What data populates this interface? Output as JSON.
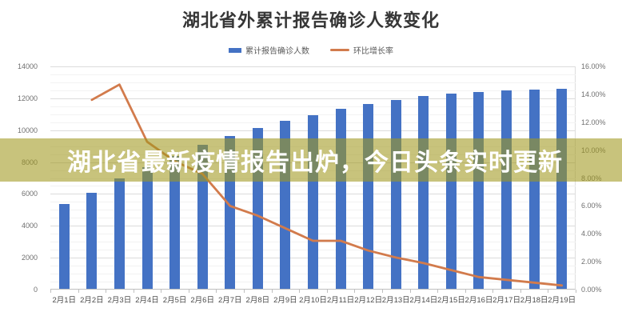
{
  "chart_data": {
    "type": "bar",
    "subtype": "combo-bar-line-dual-axis",
    "title": "湖北省外累计报告确诊人数变化",
    "categories": [
      "2月1日",
      "2月2日",
      "2月3日",
      "2月4日",
      "2月5日",
      "2月6日",
      "2月7日",
      "2月8日",
      "2月9日",
      "2月10日",
      "2月11日",
      "2月12日",
      "2月13日",
      "2月14日",
      "2月15日",
      "2月16日",
      "2月17日",
      "2月18日",
      "2月19日"
    ],
    "series": [
      {
        "name": "累计报告确诊人数",
        "type": "bar",
        "axis": "left",
        "color": "#4472C4",
        "values": [
          5306,
          6028,
          6916,
          7646,
          8353,
          9049,
          9593,
          10098,
          10540,
          10910,
          11287,
          11598,
          11865,
          12086,
          12251,
          12366,
          12447,
          12503,
          12545
        ]
      },
      {
        "name": "环比增长率",
        "type": "line",
        "axis": "right",
        "color": "#D27B4C",
        "values": [
          null,
          13.6,
          14.7,
          10.6,
          9.2,
          8.3,
          6.0,
          5.3,
          4.4,
          3.5,
          3.5,
          2.8,
          2.3,
          1.9,
          1.4,
          0.9,
          0.7,
          0.5,
          0.3
        ]
      }
    ],
    "legend": {
      "position": "top",
      "items": [
        "累计报告确诊人数",
        "环比增长率"
      ]
    },
    "left_axis": {
      "min": 0,
      "max": 14000,
      "major_step": 2000,
      "minor_step": 500,
      "labels": [
        "0",
        "2000",
        "4000",
        "6000",
        "8000",
        "10000",
        "12000",
        "14000"
      ]
    },
    "right_axis": {
      "min": 0,
      "max": 16,
      "major_step": 2,
      "labels": [
        "0.00%",
        "2.00%",
        "4.00%",
        "6.00%",
        "8.00%",
        "10.00%",
        "12.00%",
        "14.00%",
        "16.00%"
      ]
    },
    "grid": {
      "major": true,
      "minor": true
    }
  },
  "overlay_banner": {
    "text": "湖北省最新疫情报告出炉，今日头条实时更新",
    "bg_color": "rgba(160,152,30,0.58)",
    "text_color": "#ffffff"
  },
  "colors": {
    "bar": "#4472C4",
    "line": "#D27B4C",
    "axis_text": "#6f6f6f",
    "title_text": "#363636"
  }
}
